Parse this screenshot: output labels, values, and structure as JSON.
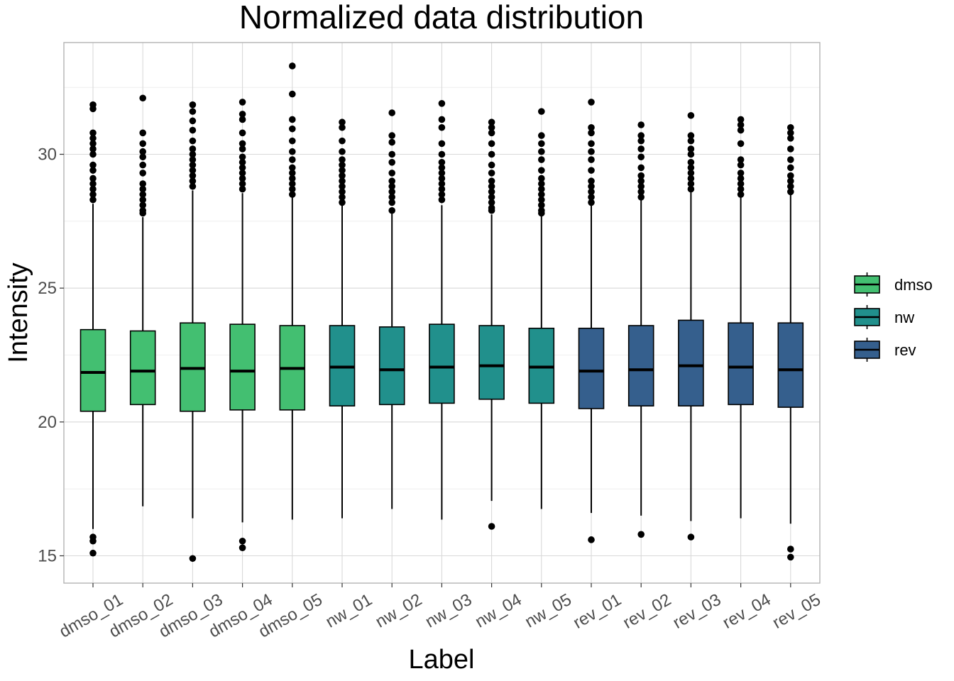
{
  "chart_data": {
    "type": "boxplot",
    "title": "Normalized data distribution",
    "xlabel": "Label",
    "ylabel": "Intensity",
    "ylim": [
      14,
      34
    ],
    "yticks": [
      15,
      20,
      25,
      30
    ],
    "grid": true,
    "legend": {
      "placement": "right",
      "entries": [
        {
          "name": "dmso",
          "color": "#43BF71"
        },
        {
          "name": "nw",
          "color": "#21908C"
        },
        {
          "name": "rev",
          "color": "#355F8D"
        }
      ]
    },
    "categories": [
      "dmso_01",
      "dmso_02",
      "dmso_03",
      "dmso_04",
      "dmso_05",
      "nw_01",
      "nw_02",
      "nw_03",
      "nw_04",
      "nw_05",
      "rev_01",
      "rev_02",
      "rev_03",
      "rev_04",
      "rev_05"
    ],
    "boxes": [
      {
        "group": "dmso",
        "q1": 20.4,
        "median": 21.85,
        "q3": 23.45,
        "whisker_low": 16.0,
        "whisker_high": 28.15,
        "outliers": [
          31.85,
          31.7,
          30.8,
          30.6,
          30.4,
          30.2,
          30.0,
          29.6,
          29.4,
          29.1,
          28.9,
          28.7,
          28.5,
          28.3,
          15.7,
          15.55,
          15.1
        ]
      },
      {
        "group": "dmso",
        "q1": 20.65,
        "median": 21.9,
        "q3": 23.4,
        "whisker_low": 16.85,
        "whisker_high": 27.65,
        "outliers": [
          32.1,
          30.8,
          30.4,
          30.1,
          29.9,
          29.6,
          29.3,
          28.9,
          28.7,
          28.5,
          28.3,
          28.1,
          27.9,
          27.8
        ]
      },
      {
        "group": "dmso",
        "q1": 20.4,
        "median": 22.0,
        "q3": 23.7,
        "whisker_low": 16.4,
        "whisker_high": 28.65,
        "outliers": [
          31.85,
          31.6,
          31.25,
          30.9,
          30.5,
          30.2,
          30.0,
          29.8,
          29.6,
          29.4,
          29.2,
          29.0,
          28.8,
          14.9
        ]
      },
      {
        "group": "dmso",
        "q1": 20.45,
        "median": 21.9,
        "q3": 23.65,
        "whisker_low": 16.25,
        "whisker_high": 28.55,
        "outliers": [
          31.95,
          31.5,
          31.3,
          30.8,
          30.4,
          30.2,
          29.9,
          29.7,
          29.5,
          29.3,
          29.1,
          28.9,
          28.7,
          15.55,
          15.3
        ]
      },
      {
        "group": "dmso",
        "q1": 20.45,
        "median": 22.0,
        "q3": 23.6,
        "whisker_low": 16.35,
        "whisker_high": 28.45,
        "outliers": [
          33.3,
          32.25,
          31.3,
          30.95,
          30.5,
          30.1,
          29.8,
          29.5,
          29.3,
          29.1,
          28.9,
          28.7,
          28.5
        ]
      },
      {
        "group": "nw",
        "q1": 20.6,
        "median": 22.05,
        "q3": 23.6,
        "whisker_low": 16.4,
        "whisker_high": 28.15,
        "outliers": [
          31.2,
          31.0,
          30.5,
          30.1,
          29.8,
          29.6,
          29.4,
          29.2,
          29.0,
          28.8,
          28.6,
          28.4,
          28.2
        ]
      },
      {
        "group": "nw",
        "q1": 20.65,
        "median": 21.95,
        "q3": 23.55,
        "whisker_low": 16.75,
        "whisker_high": 27.8,
        "outliers": [
          31.55,
          30.7,
          30.45,
          30.0,
          29.7,
          29.3,
          29.0,
          28.8,
          28.6,
          28.4,
          28.2,
          27.9
        ]
      },
      {
        "group": "nw",
        "q1": 20.7,
        "median": 22.05,
        "q3": 23.65,
        "whisker_low": 16.35,
        "whisker_high": 28.1,
        "outliers": [
          31.9,
          31.3,
          31.0,
          30.4,
          30.0,
          29.7,
          29.5,
          29.3,
          29.1,
          28.9,
          28.7,
          28.5,
          28.3
        ]
      },
      {
        "group": "nw",
        "q1": 20.85,
        "median": 22.1,
        "q3": 23.6,
        "whisker_low": 17.05,
        "whisker_high": 27.75,
        "outliers": [
          31.2,
          31.0,
          30.8,
          30.4,
          30.0,
          29.6,
          29.3,
          29.0,
          28.8,
          28.6,
          28.4,
          28.2,
          28.0,
          27.9,
          16.1
        ]
      },
      {
        "group": "nw",
        "q1": 20.7,
        "median": 22.05,
        "q3": 23.5,
        "whisker_low": 16.75,
        "whisker_high": 27.7,
        "outliers": [
          31.6,
          30.7,
          30.4,
          30.1,
          29.8,
          29.4,
          29.1,
          28.9,
          28.7,
          28.5,
          28.3,
          28.1,
          27.9,
          27.8
        ]
      },
      {
        "group": "rev",
        "q1": 20.5,
        "median": 21.9,
        "q3": 23.5,
        "whisker_low": 16.6,
        "whisker_high": 28.15,
        "outliers": [
          31.95,
          31.0,
          30.8,
          30.4,
          30.1,
          29.8,
          29.4,
          29.0,
          28.8,
          28.6,
          28.4,
          28.2,
          15.6
        ]
      },
      {
        "group": "rev",
        "q1": 20.6,
        "median": 21.95,
        "q3": 23.6,
        "whisker_low": 16.5,
        "whisker_high": 28.3,
        "outliers": [
          31.1,
          30.7,
          30.5,
          30.2,
          29.9,
          29.5,
          29.2,
          29.0,
          28.8,
          28.6,
          28.4,
          15.8
        ]
      },
      {
        "group": "rev",
        "q1": 20.6,
        "median": 22.1,
        "q3": 23.8,
        "whisker_low": 16.3,
        "whisker_high": 28.7,
        "outliers": [
          31.45,
          30.7,
          30.5,
          30.2,
          30.0,
          29.7,
          29.5,
          29.3,
          29.1,
          28.9,
          28.7,
          15.7
        ]
      },
      {
        "group": "rev",
        "q1": 20.65,
        "median": 22.05,
        "q3": 23.7,
        "whisker_low": 16.4,
        "whisker_high": 28.45,
        "outliers": [
          31.3,
          31.1,
          30.9,
          30.4,
          29.8,
          29.6,
          29.3,
          29.1,
          28.9,
          28.7,
          28.5
        ]
      },
      {
        "group": "rev",
        "q1": 20.55,
        "median": 21.95,
        "q3": 23.7,
        "whisker_low": 16.2,
        "whisker_high": 28.55,
        "outliers": [
          31.0,
          30.8,
          30.6,
          30.2,
          29.8,
          29.5,
          29.2,
          29.0,
          28.8,
          28.6,
          15.25,
          14.95
        ]
      }
    ]
  }
}
